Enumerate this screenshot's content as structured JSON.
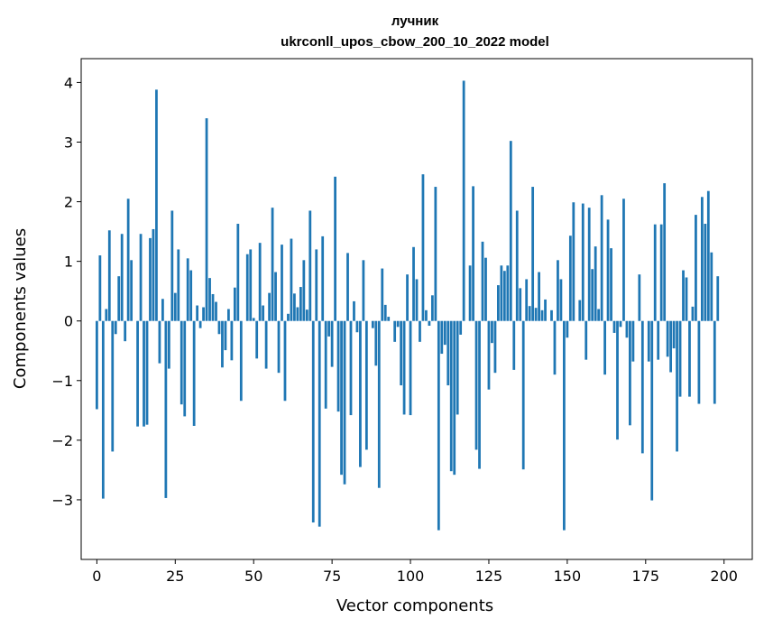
{
  "chart_data": {
    "type": "bar",
    "title": "лучник",
    "subtitle": "ukrconll_upos_cbow_200_10_2022 model",
    "xlabel": "Vector components",
    "ylabel": "Components values",
    "xlim": [
      -5,
      209
    ],
    "ylim": [
      -4.0,
      4.4
    ],
    "xticks": [
      0,
      25,
      50,
      75,
      100,
      125,
      150,
      175,
      200
    ],
    "yticks": [
      -3,
      -2,
      -1,
      0,
      1,
      2,
      3,
      4
    ],
    "ytick_labels": [
      "−3",
      "−2",
      "−1",
      "0",
      "1",
      "2",
      "3",
      "4"
    ],
    "grid": false,
    "bar_color": "#1f77b4",
    "values": [
      -1.48,
      1.1,
      -2.98,
      0.2,
      1.52,
      -2.19,
      -0.22,
      0.75,
      1.46,
      -0.34,
      2.05,
      1.02,
      0.0,
      -1.77,
      1.46,
      -1.77,
      -1.74,
      1.39,
      1.54,
      3.88,
      -0.71,
      0.37,
      -2.97,
      -0.8,
      1.85,
      0.47,
      1.2,
      -1.4,
      -1.6,
      1.05,
      0.85,
      -1.76,
      0.26,
      -0.12,
      0.23,
      3.4,
      0.72,
      0.45,
      0.32,
      -0.22,
      -0.78,
      -0.49,
      0.2,
      -0.66,
      0.56,
      1.63,
      -1.34,
      0.0,
      1.12,
      1.2,
      0.05,
      -0.63,
      1.31,
      0.26,
      -0.8,
      0.47,
      1.9,
      0.82,
      -0.87,
      1.28,
      -1.34,
      0.12,
      1.38,
      0.46,
      0.23,
      0.57,
      1.02,
      0.19,
      1.85,
      -3.38,
      1.2,
      -3.45,
      1.42,
      -1.47,
      -0.26,
      -0.77,
      2.42,
      -1.52,
      -2.58,
      -2.74,
      1.14,
      -1.58,
      0.33,
      -0.19,
      -2.45,
      1.02,
      -2.16,
      0.0,
      -0.12,
      -0.75,
      -2.8,
      0.88,
      0.27,
      0.07,
      0.0,
      -0.35,
      -0.1,
      -1.08,
      -1.57,
      0.78,
      -1.58,
      1.24,
      0.7,
      -0.35,
      2.46,
      0.18,
      -0.08,
      0.43,
      2.25,
      -3.51,
      -0.55,
      -0.4,
      -1.08,
      -2.52,
      -2.58,
      -1.57,
      -0.23,
      4.03,
      0.0,
      0.93,
      2.26,
      -2.16,
      -2.48,
      1.33,
      1.06,
      -1.15,
      -0.37,
      -0.87,
      0.6,
      0.93,
      0.84,
      0.93,
      3.02,
      -0.82,
      1.85,
      0.55,
      -2.49,
      0.7,
      0.25,
      2.25,
      0.22,
      0.82,
      0.18,
      0.36,
      0.0,
      0.18,
      -0.9,
      1.02,
      0.7,
      -3.51,
      -0.28,
      1.43,
      1.99,
      0.0,
      0.35,
      1.97,
      -0.65,
      1.9,
      0.87,
      1.25,
      0.2,
      2.11,
      -0.9,
      1.7,
      1.22,
      -0.2,
      -1.99,
      -0.1,
      2.05,
      -0.28,
      -1.75,
      -0.68,
      0.0,
      0.78,
      -2.22,
      0.0,
      -0.68,
      -3.01,
      1.62,
      -0.65,
      1.62,
      2.31,
      -0.6,
      -0.86,
      -0.46,
      -2.19,
      -1.27,
      0.85,
      0.73,
      -1.27,
      0.24,
      1.78,
      -1.39,
      2.08,
      1.63,
      2.18,
      1.15,
      -1.39,
      0.75
    ]
  }
}
